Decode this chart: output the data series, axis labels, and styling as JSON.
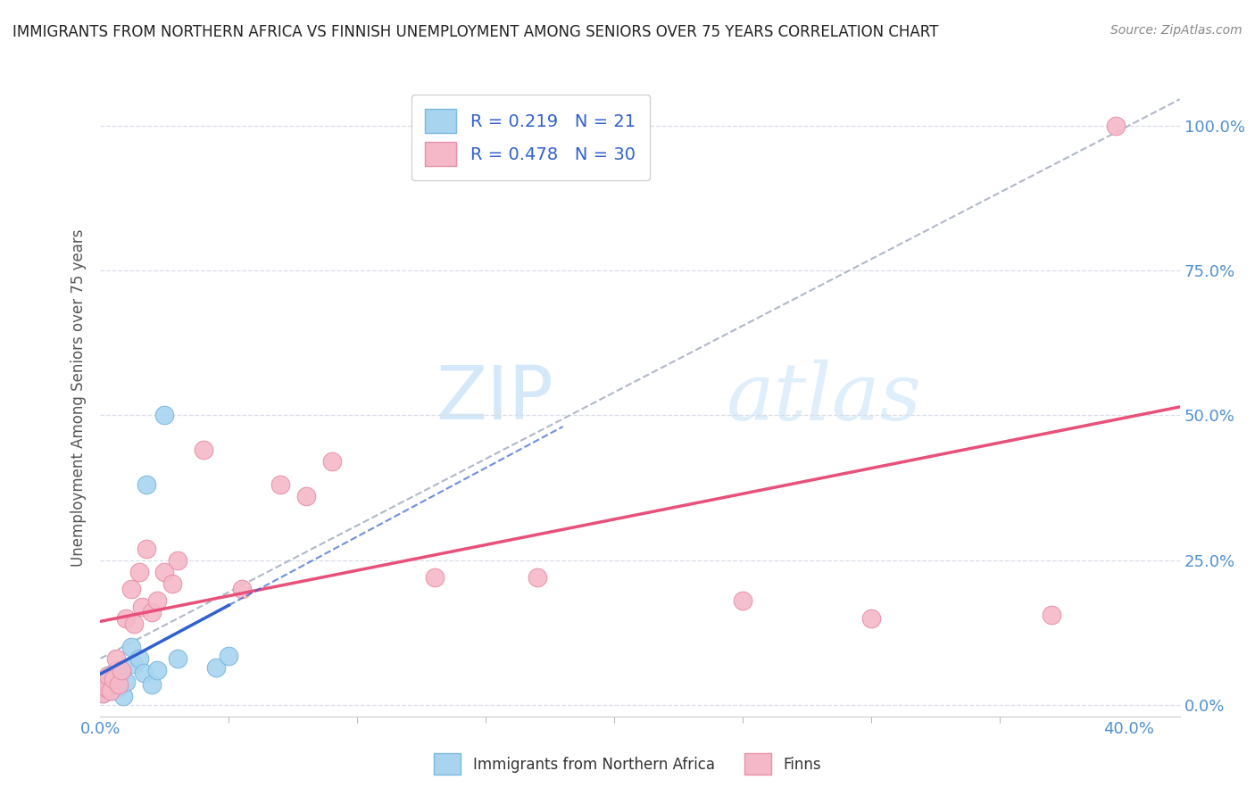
{
  "title": "IMMIGRANTS FROM NORTHERN AFRICA VS FINNISH UNEMPLOYMENT AMONG SENIORS OVER 75 YEARS CORRELATION CHART",
  "source": "Source: ZipAtlas.com",
  "ylabel": "Unemployment Among Seniors over 75 years",
  "legend_blue_r": "R = 0.219",
  "legend_blue_n": "N = 21",
  "legend_pink_r": "R = 0.478",
  "legend_pink_n": "N = 30",
  "watermark_zip": "ZIP",
  "watermark_atlas": "atlas",
  "blue_color": "#a8d4f0",
  "blue_edge": "#7ab8e0",
  "pink_color": "#f5b8c8",
  "pink_edge": "#e890a8",
  "trend_blue_color": "#3060d0",
  "trend_pink_color": "#e8507a",
  "trend_gray_color": "#b0b8c8",
  "blue_scatter_x": [
    0.001,
    0.002,
    0.003,
    0.004,
    0.005,
    0.006,
    0.007,
    0.008,
    0.009,
    0.01,
    0.012,
    0.013,
    0.015,
    0.017,
    0.018,
    0.02,
    0.022,
    0.025,
    0.03,
    0.045,
    0.05
  ],
  "blue_scatter_y": [
    0.02,
    0.035,
    0.05,
    0.025,
    0.045,
    0.06,
    0.03,
    0.055,
    0.015,
    0.04,
    0.1,
    0.07,
    0.08,
    0.055,
    0.38,
    0.035,
    0.06,
    0.5,
    0.08,
    0.065,
    0.085
  ],
  "pink_scatter_x": [
    0.001,
    0.002,
    0.003,
    0.004,
    0.005,
    0.006,
    0.007,
    0.008,
    0.01,
    0.012,
    0.013,
    0.015,
    0.016,
    0.018,
    0.02,
    0.022,
    0.025,
    0.028,
    0.03,
    0.04,
    0.055,
    0.07,
    0.08,
    0.09,
    0.13,
    0.17,
    0.25,
    0.3,
    0.37,
    0.395
  ],
  "pink_scatter_y": [
    0.02,
    0.03,
    0.05,
    0.025,
    0.045,
    0.08,
    0.035,
    0.06,
    0.15,
    0.2,
    0.14,
    0.23,
    0.17,
    0.27,
    0.16,
    0.18,
    0.23,
    0.21,
    0.25,
    0.44,
    0.2,
    0.38,
    0.36,
    0.42,
    0.22,
    0.22,
    0.18,
    0.15,
    0.155,
    1.0
  ],
  "xlim": [
    0.0,
    0.42
  ],
  "ylim": [
    -0.02,
    1.08
  ],
  "x_ticks_minor": [
    0.05,
    0.1,
    0.15,
    0.2,
    0.25,
    0.3,
    0.35
  ],
  "background_color": "#ffffff",
  "grid_color": "#d8dde8"
}
